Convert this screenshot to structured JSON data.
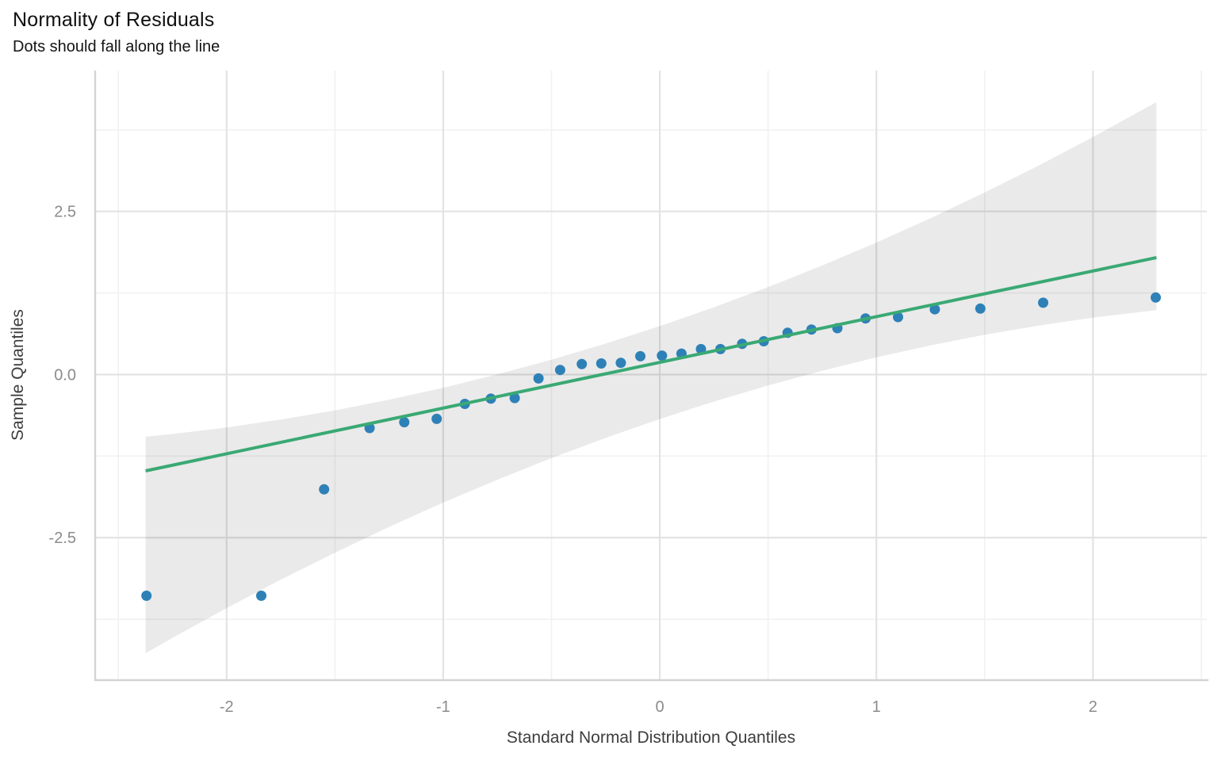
{
  "chart": {
    "title": "Normality of Residuals",
    "subtitle": "Dots should fall along the line",
    "x_label": "Standard Normal Distribution Quantiles",
    "y_label": "Sample Quantiles"
  },
  "chart_data": {
    "type": "scatter",
    "variant": "qq-plot-with-confidence-band",
    "title": "Normality of Residuals",
    "subtitle": "Dots should fall along the line",
    "xlabel": "Standard Normal Distribution Quantiles",
    "ylabel": "Sample Quantiles",
    "x_domain": [
      -2.607,
      2.526
    ],
    "y_domain": [
      -4.684,
      4.659
    ],
    "grid": true,
    "legend": null,
    "x_ticks": [
      {
        "value": -2,
        "label": "-2"
      },
      {
        "value": -1,
        "label": "-1"
      },
      {
        "value": 0,
        "label": "0"
      },
      {
        "value": 1,
        "label": "1"
      },
      {
        "value": 2,
        "label": "2"
      }
    ],
    "y_ticks": [
      {
        "value": 2.5,
        "label": "2.5"
      },
      {
        "value": 0,
        "label": "0.0"
      },
      {
        "value": -2.5,
        "label": "-2.5"
      }
    ],
    "x_minor_ticks": [
      -2.5,
      -1.5,
      -0.5,
      0.5,
      1.5,
      2.5
    ],
    "y_minor_ticks": [
      -3.75,
      -1.25,
      1.25,
      3.75
    ],
    "points": [
      [
        -2.37,
        -3.39
      ],
      [
        -1.84,
        -3.39
      ],
      [
        -1.55,
        -1.76
      ],
      [
        -1.34,
        -0.82
      ],
      [
        -1.18,
        -0.73
      ],
      [
        -1.03,
        -0.68
      ],
      [
        -0.9,
        -0.45
      ],
      [
        -0.78,
        -0.37
      ],
      [
        -0.67,
        -0.36
      ],
      [
        -0.56,
        -0.06
      ],
      [
        -0.46,
        0.07
      ],
      [
        -0.36,
        0.16
      ],
      [
        -0.27,
        0.17
      ],
      [
        -0.18,
        0.18
      ],
      [
        -0.09,
        0.28
      ],
      [
        0.01,
        0.29
      ],
      [
        0.1,
        0.32
      ],
      [
        0.19,
        0.39
      ],
      [
        0.28,
        0.39
      ],
      [
        0.38,
        0.47
      ],
      [
        0.48,
        0.51
      ],
      [
        0.59,
        0.64
      ],
      [
        0.7,
        0.69
      ],
      [
        0.82,
        0.71
      ],
      [
        0.95,
        0.86
      ],
      [
        1.1,
        0.88
      ],
      [
        1.27,
        1.0
      ],
      [
        1.48,
        1.01
      ],
      [
        1.77,
        1.1
      ],
      [
        2.29,
        1.18
      ]
    ],
    "qq_line": {
      "x1": -2.374,
      "y1": -1.476,
      "x2": 2.293,
      "y2": 1.793
    },
    "confidence_band": [
      [
        -2.374,
        -4.271,
        -0.953
      ],
      [
        -2.25,
        -4.037,
        -0.911
      ],
      [
        -2.0,
        -3.58,
        -0.812
      ],
      [
        -1.75,
        -3.145,
        -0.691
      ],
      [
        -1.5,
        -2.73,
        -0.55
      ],
      [
        -1.25,
        -2.336,
        -0.386
      ],
      [
        -1.0,
        -1.963,
        -0.203
      ],
      [
        -0.75,
        -1.612,
        0.002
      ],
      [
        -0.5,
        -1.281,
        0.227
      ],
      [
        -0.25,
        -0.971,
        0.475
      ],
      [
        0.0,
        -0.682,
        0.742
      ],
      [
        0.25,
        -0.415,
        1.031
      ],
      [
        0.5,
        -0.167,
        1.341
      ],
      [
        0.75,
        0.058,
        1.672
      ],
      [
        1.0,
        0.263,
        2.023
      ],
      [
        1.25,
        0.446,
        2.396
      ],
      [
        1.5,
        0.61,
        2.79
      ],
      [
        1.75,
        0.751,
        3.205
      ],
      [
        2.0,
        0.872,
        3.64
      ],
      [
        2.293,
        0.987,
        4.177
      ]
    ],
    "colors": {
      "point": "#2e81b7",
      "line": "#3aa974",
      "band": "rgba(0,0,0,0.082)",
      "grid_major": "#e3e3e3",
      "grid_minor": "#f1f1f1",
      "axis_line": "#d4d4d4",
      "tick_label": "#8b8b8b",
      "axis_title": "#3d3d3d",
      "title": "#0f0f0f"
    }
  }
}
